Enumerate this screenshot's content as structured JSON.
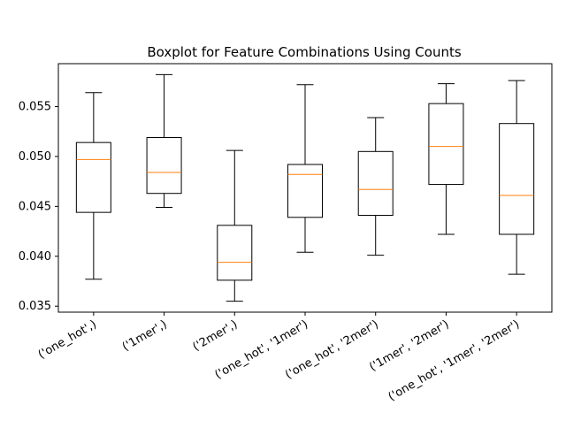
{
  "chart_data": {
    "type": "boxplot",
    "title": "Boxplot for Feature Combinations Using Counts",
    "xlabel": "",
    "ylabel": "",
    "ylim": [
      0.0344,
      0.0593
    ],
    "yticks": [
      0.035,
      0.04,
      0.045,
      0.05,
      0.055
    ],
    "ytick_labels": [
      "0.035",
      "0.040",
      "0.045",
      "0.050",
      "0.055"
    ],
    "categories": [
      "('one_hot',)",
      "('1mer',)",
      "('2mer',)",
      "('one_hot', '1mer')",
      "('one_hot', '2mer')",
      "('1mer', '2mer')",
      "('one_hot', '1mer', '2mer')"
    ],
    "boxes": [
      {
        "whisker_low": 0.0377,
        "q1": 0.0444,
        "median": 0.0497,
        "q3": 0.0514,
        "whisker_high": 0.0564
      },
      {
        "whisker_low": 0.0449,
        "q1": 0.0463,
        "median": 0.0484,
        "q3": 0.0519,
        "whisker_high": 0.0582
      },
      {
        "whisker_low": 0.0355,
        "q1": 0.0376,
        "median": 0.0394,
        "q3": 0.0431,
        "whisker_high": 0.0506
      },
      {
        "whisker_low": 0.0404,
        "q1": 0.0439,
        "median": 0.0482,
        "q3": 0.0492,
        "whisker_high": 0.0572
      },
      {
        "whisker_low": 0.0401,
        "q1": 0.0441,
        "median": 0.0467,
        "q3": 0.0505,
        "whisker_high": 0.0539
      },
      {
        "whisker_low": 0.0422,
        "q1": 0.0472,
        "median": 0.051,
        "q3": 0.0553,
        "whisker_high": 0.0573
      },
      {
        "whisker_low": 0.0382,
        "q1": 0.0422,
        "median": 0.0461,
        "q3": 0.0533,
        "whisker_high": 0.0576
      }
    ],
    "colors": {
      "box": "#000000",
      "median": "#ff7f0e",
      "whisker": "#000000"
    },
    "grid": false,
    "legend": "none"
  }
}
